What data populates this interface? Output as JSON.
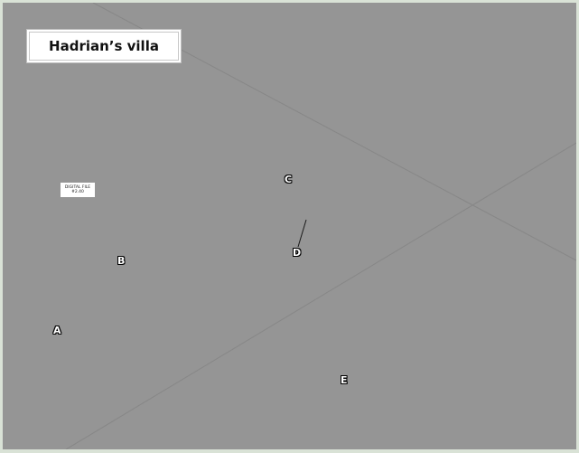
{
  "title": "Hadrian’s villa",
  "file_tag": {
    "line1": "DIGITAL FILE",
    "line2": "#2.40"
  },
  "markers": {
    "a": "A",
    "b": "B",
    "c": "C",
    "d": "D",
    "e": "E"
  },
  "colors": {
    "background": "#959595",
    "page_border": "#d9e2d6",
    "grid_line": "#8a8a8a",
    "marker_fill": "#ffffff",
    "marker_outline": "#000000"
  }
}
